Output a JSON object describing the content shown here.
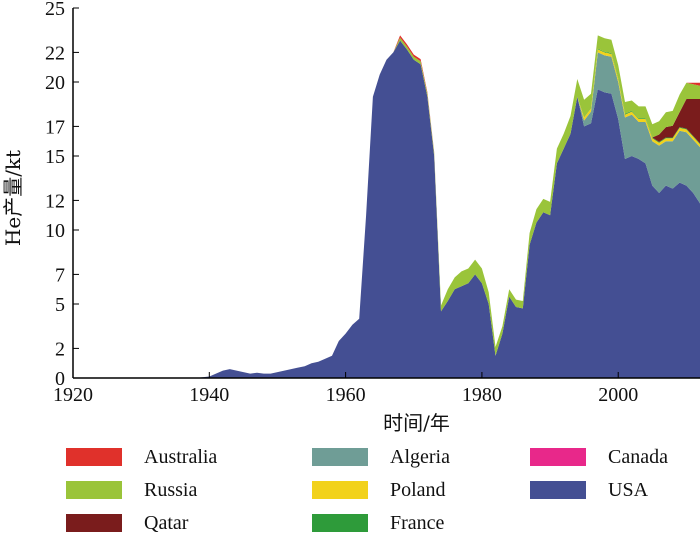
{
  "chart_data": {
    "type": "area",
    "stacked": true,
    "xlabel": "时间/年",
    "ylabel": "He产量/kt",
    "x_ticks": [
      1920,
      1940,
      1960,
      1980,
      2000
    ],
    "y_ticks": [
      0,
      2,
      5,
      7,
      10,
      12,
      15,
      17,
      20,
      22,
      25
    ],
    "xlim": [
      1920,
      2012
    ],
    "ylim": [
      0,
      25
    ],
    "legend_position": "bottom",
    "colors": {
      "USA": "#444f93",
      "Algeria": "#6f9d96",
      "Poland": "#f2d21b",
      "France": "#2e9b3a",
      "Qatar": "#7a1c1c",
      "Russia": "#9ac43a",
      "Canada": "#e8288a",
      "Australia": "#e0312b"
    },
    "x": [
      1920,
      1938,
      1940,
      1942,
      1943,
      1944,
      1945,
      1946,
      1947,
      1948,
      1949,
      1950,
      1951,
      1952,
      1953,
      1954,
      1955,
      1956,
      1957,
      1958,
      1959,
      1960,
      1961,
      1962,
      1963,
      1964,
      1965,
      1966,
      1967,
      1968,
      1969,
      1970,
      1971,
      1972,
      1973,
      1974,
      1975,
      1976,
      1977,
      1978,
      1979,
      1980,
      1981,
      1982,
      1983,
      1984,
      1985,
      1986,
      1987,
      1988,
      1989,
      1990,
      1991,
      1992,
      1993,
      1994,
      1995,
      1996,
      1997,
      1998,
      1999,
      2000,
      2001,
      2002,
      2003,
      2004,
      2005,
      2006,
      2007,
      2008,
      2009,
      2010,
      2011,
      2012
    ],
    "series": [
      {
        "name": "USA",
        "values": [
          0,
          0,
          0.1,
          0.5,
          0.6,
          0.5,
          0.4,
          0.3,
          0.35,
          0.3,
          0.3,
          0.4,
          0.5,
          0.6,
          0.7,
          0.8,
          1.0,
          1.1,
          1.3,
          1.5,
          2.5,
          3.0,
          3.6,
          4.0,
          11.0,
          19.0,
          20.5,
          21.5,
          22.0,
          22.8,
          22.2,
          21.5,
          21.2,
          19.0,
          15.0,
          4.5,
          5.2,
          6.0,
          6.2,
          6.4,
          7.0,
          6.4,
          5.0,
          1.5,
          3.0,
          5.5,
          4.8,
          4.7,
          9.0,
          10.5,
          11.2,
          11.0,
          14.5,
          15.5,
          16.5,
          19.0,
          17.0,
          17.2,
          19.5,
          19.3,
          19.2,
          17.5,
          14.8,
          15.0,
          14.8,
          14.5,
          13.0,
          12.5,
          13.0,
          12.8,
          13.2,
          13.0,
          12.5,
          11.8
        ]
      },
      {
        "name": "Algeria",
        "values": [
          0,
          0,
          0,
          0,
          0,
          0,
          0,
          0,
          0,
          0,
          0,
          0,
          0,
          0,
          0,
          0,
          0,
          0,
          0,
          0,
          0,
          0,
          0,
          0,
          0,
          0,
          0,
          0,
          0,
          0,
          0,
          0,
          0,
          0,
          0,
          0,
          0,
          0,
          0,
          0,
          0,
          0,
          0,
          0,
          0,
          0,
          0,
          0,
          0,
          0,
          0,
          0,
          0,
          0,
          0,
          0,
          0.4,
          0.8,
          2.5,
          2.5,
          2.5,
          2.5,
          2.8,
          2.8,
          2.5,
          2.8,
          3.0,
          3.2,
          3.0,
          3.2,
          3.5,
          3.6,
          3.6,
          3.8
        ]
      },
      {
        "name": "Poland",
        "values": [
          0,
          0,
          0,
          0,
          0,
          0,
          0,
          0,
          0,
          0,
          0,
          0,
          0,
          0,
          0,
          0,
          0,
          0,
          0,
          0,
          0,
          0,
          0,
          0,
          0,
          0,
          0,
          0,
          0,
          0,
          0,
          0,
          0,
          0,
          0,
          0,
          0,
          0,
          0,
          0,
          0,
          0,
          0,
          0,
          0,
          0,
          0,
          0,
          0,
          0,
          0,
          0,
          0,
          0,
          0,
          0,
          0.2,
          0.2,
          0.2,
          0.2,
          0.2,
          0.2,
          0.2,
          0.2,
          0.2,
          0.2,
          0.2,
          0.2,
          0.2,
          0.2,
          0.2,
          0.2,
          0.2,
          0.2
        ]
      },
      {
        "name": "France",
        "values": [
          0,
          0,
          0,
          0,
          0,
          0,
          0,
          0,
          0,
          0,
          0,
          0,
          0,
          0,
          0,
          0,
          0,
          0,
          0,
          0,
          0,
          0,
          0,
          0,
          0,
          0,
          0,
          0,
          0,
          0,
          0,
          0,
          0,
          0,
          0,
          0,
          0,
          0,
          0,
          0,
          0,
          0,
          0,
          0,
          0,
          0,
          0,
          0,
          0,
          0,
          0,
          0,
          0,
          0,
          0,
          0,
          0,
          0,
          0.05,
          0.05,
          0.05,
          0.05,
          0.05,
          0.05,
          0.05,
          0.05,
          0.05,
          0.05,
          0.05,
          0.05,
          0.05,
          0.05,
          0.05,
          0.05
        ]
      },
      {
        "name": "Qatar",
        "values": [
          0,
          0,
          0,
          0,
          0,
          0,
          0,
          0,
          0,
          0,
          0,
          0,
          0,
          0,
          0,
          0,
          0,
          0,
          0,
          0,
          0,
          0,
          0,
          0,
          0,
          0,
          0,
          0,
          0,
          0,
          0,
          0,
          0,
          0,
          0,
          0,
          0,
          0,
          0,
          0,
          0,
          0,
          0,
          0,
          0,
          0,
          0,
          0,
          0,
          0,
          0,
          0,
          0,
          0,
          0,
          0,
          0,
          0,
          0,
          0,
          0,
          0,
          0,
          0,
          0,
          0,
          0,
          0.5,
          0.7,
          0.8,
          1.0,
          2.0,
          2.5,
          3.0
        ]
      },
      {
        "name": "Russia",
        "values": [
          0,
          0,
          0,
          0,
          0,
          0,
          0,
          0,
          0,
          0,
          0,
          0,
          0,
          0,
          0,
          0,
          0,
          0,
          0,
          0,
          0,
          0,
          0,
          0,
          0,
          0,
          0,
          0,
          0,
          0.2,
          0.2,
          0.2,
          0.2,
          0.2,
          0.2,
          0.4,
          0.8,
          0.8,
          1.0,
          1.0,
          1.0,
          1.0,
          0.8,
          0.6,
          0.5,
          0.5,
          0.5,
          0.5,
          0.8,
          0.9,
          0.9,
          0.9,
          1.0,
          1.0,
          1.2,
          1.2,
          1.2,
          1.0,
          0.9,
          0.9,
          0.9,
          0.9,
          0.8,
          0.7,
          0.8,
          0.8,
          0.9,
          0.9,
          1.0,
          1.0,
          1.2,
          1.1,
          1.0,
          0.9
        ]
      },
      {
        "name": "Canada",
        "values": [
          0,
          0,
          0,
          0,
          0,
          0,
          0,
          0,
          0,
          0,
          0,
          0,
          0,
          0,
          0,
          0,
          0,
          0,
          0,
          0,
          0,
          0,
          0,
          0,
          0,
          0,
          0,
          0,
          0,
          0,
          0,
          0,
          0,
          0,
          0,
          0,
          0,
          0,
          0,
          0,
          0,
          0,
          0,
          0,
          0,
          0,
          0,
          0,
          0,
          0,
          0,
          0,
          0,
          0,
          0,
          0,
          0,
          0,
          0,
          0,
          0,
          0,
          0,
          0,
          0,
          0,
          0,
          0,
          0,
          0,
          0,
          0,
          0,
          0
        ]
      },
      {
        "name": "Australia",
        "values": [
          0,
          0,
          0,
          0,
          0,
          0,
          0,
          0,
          0,
          0,
          0,
          0,
          0,
          0,
          0,
          0,
          0,
          0,
          0,
          0,
          0,
          0,
          0,
          0,
          0,
          0,
          0,
          0,
          0,
          0.15,
          0.15,
          0.15,
          0.15,
          0.1,
          0.05,
          0,
          0,
          0,
          0,
          0,
          0,
          0,
          0,
          0,
          0,
          0,
          0,
          0,
          0,
          0,
          0,
          0,
          0,
          0,
          0,
          0,
          0,
          0,
          0,
          0,
          0,
          0,
          0,
          0,
          0,
          0,
          0,
          0,
          0,
          0,
          0,
          0,
          0.1,
          0.2
        ]
      }
    ],
    "legend": [
      {
        "name": "Australia",
        "col": 0,
        "row": 0
      },
      {
        "name": "Russia",
        "col": 0,
        "row": 1
      },
      {
        "name": "Qatar",
        "col": 0,
        "row": 2
      },
      {
        "name": "Algeria",
        "col": 1,
        "row": 0
      },
      {
        "name": "Poland",
        "col": 1,
        "row": 1
      },
      {
        "name": "France",
        "col": 1,
        "row": 2
      },
      {
        "name": "Canada",
        "col": 2,
        "row": 0
      },
      {
        "name": "USA",
        "col": 2,
        "row": 1
      }
    ]
  }
}
